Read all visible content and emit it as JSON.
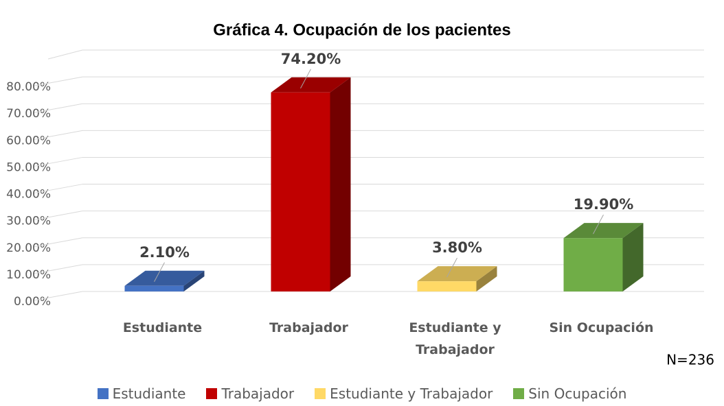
{
  "chart_data": {
    "type": "bar3d",
    "title": "Gráfica 4. Ocupación de los pacientes",
    "categories": [
      "Estudiante",
      "Trabajador",
      "Estudiante y Trabajador",
      "Sin Ocupación"
    ],
    "values": [
      2.1,
      74.2,
      3.8,
      19.9
    ],
    "value_labels": [
      "2.10%",
      "74.20%",
      "3.80%",
      "19.90%"
    ],
    "colors": [
      "#4472c4",
      "#c00000",
      "#ffd966",
      "#70ad47"
    ],
    "ylim": [
      0,
      90
    ],
    "yticks": [
      {
        "value": 0,
        "label": "0.00%"
      },
      {
        "value": 10,
        "label": "10.00%"
      },
      {
        "value": 20,
        "label": "20.00%"
      },
      {
        "value": 30,
        "label": "30.00%"
      },
      {
        "value": 40,
        "label": "40.00%"
      },
      {
        "value": 50,
        "label": "50.00%"
      },
      {
        "value": 60,
        "label": "60.00%"
      },
      {
        "value": 70,
        "label": "70.00%"
      },
      {
        "value": 80,
        "label": "80.00%"
      }
    ],
    "grid": true,
    "legend": "bottom",
    "annotation": "N=236"
  }
}
